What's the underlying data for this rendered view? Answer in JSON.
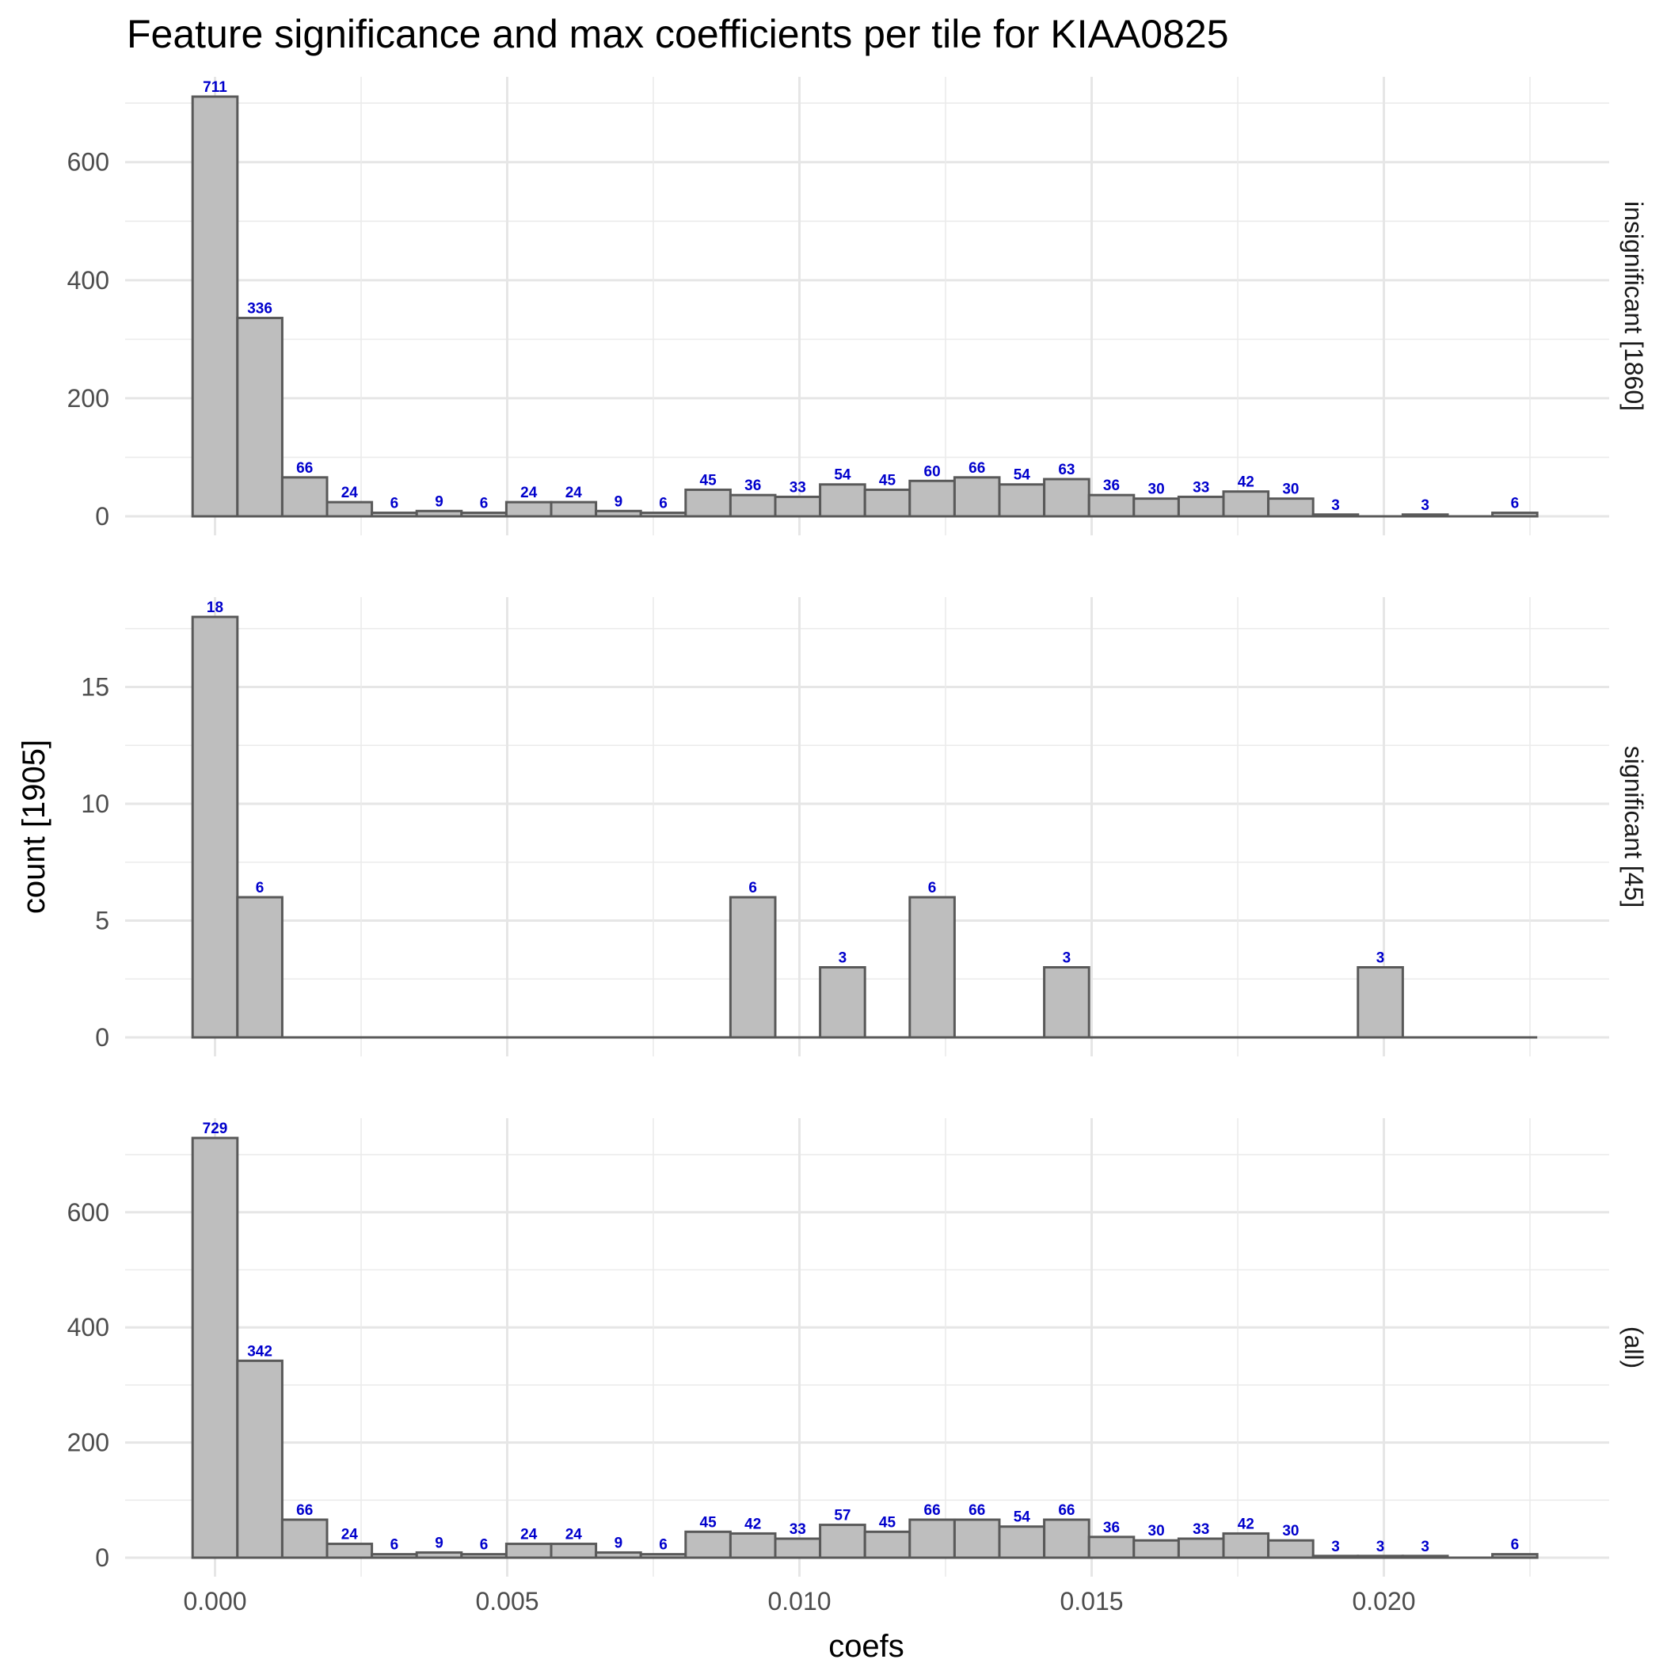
{
  "chart_data": {
    "type": "bar",
    "title": "Feature significance and max coefficients per tile for KIAA0825",
    "xlabel": "coefs",
    "ylabel": "count [1905]",
    "x_ticks": [
      "0.000",
      "0.005",
      "0.010",
      "0.015",
      "0.020"
    ],
    "bin_centers": [
      0.0,
      0.000769,
      0.001538,
      0.002308,
      0.003077,
      0.003846,
      0.004615,
      0.005385,
      0.006154,
      0.006923,
      0.007692,
      0.008462,
      0.009231,
      0.01,
      0.010769,
      0.011538,
      0.012308,
      0.013077,
      0.013846,
      0.014615,
      0.015385,
      0.016154,
      0.016923,
      0.017692,
      0.018462,
      0.019231,
      0.02,
      0.020769,
      0.021538,
      0.022308
    ],
    "grid": true,
    "facets": [
      {
        "strip": "insignificant [1860]",
        "y_ticks": [
          "0",
          "200",
          "400",
          "600"
        ],
        "ylim": [
          0,
          711
        ],
        "values": [
          711,
          336,
          66,
          24,
          6,
          9,
          6,
          24,
          24,
          9,
          6,
          45,
          36,
          33,
          54,
          45,
          60,
          66,
          54,
          63,
          36,
          30,
          33,
          42,
          30,
          3,
          0,
          3,
          0,
          6
        ]
      },
      {
        "strip": "significant [45]",
        "y_ticks": [
          "0",
          "5",
          "10",
          "15"
        ],
        "ylim": [
          0,
          18
        ],
        "values": [
          18,
          6,
          0,
          0,
          0,
          0,
          0,
          0,
          0,
          0,
          0,
          0,
          6,
          0,
          3,
          0,
          6,
          0,
          0,
          3,
          0,
          0,
          0,
          0,
          0,
          0,
          3,
          0,
          0,
          0
        ]
      },
      {
        "strip": "(all)",
        "y_ticks": [
          "0",
          "200",
          "400",
          "600"
        ],
        "ylim": [
          0,
          729
        ],
        "values": [
          729,
          342,
          66,
          24,
          6,
          9,
          6,
          24,
          24,
          9,
          6,
          45,
          42,
          33,
          57,
          45,
          66,
          66,
          54,
          66,
          36,
          30,
          33,
          42,
          30,
          3,
          3,
          3,
          0,
          6
        ]
      }
    ]
  }
}
